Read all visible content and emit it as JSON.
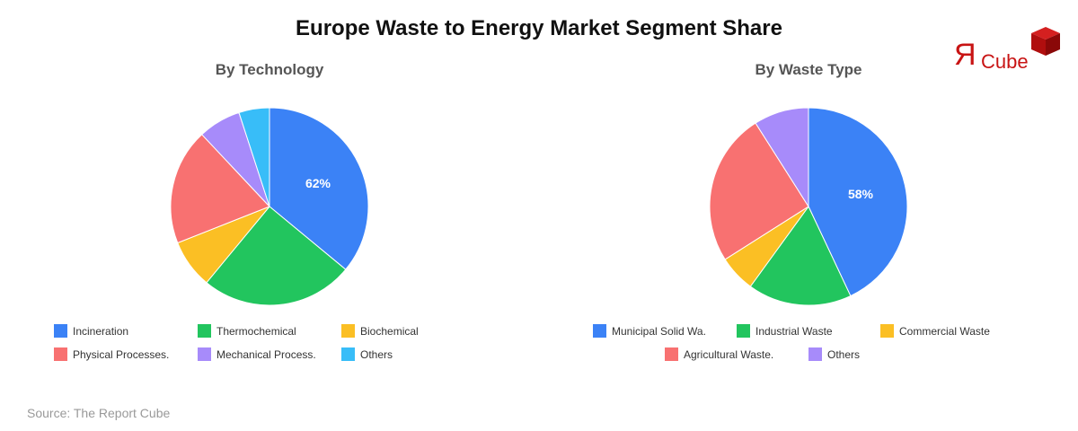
{
  "title": "Europe Waste to Energy Market Segment Share",
  "source": "Source: The Report Cube",
  "logo": {
    "r": "Я",
    "text": "Cube"
  },
  "chart_data": [
    {
      "type": "pie",
      "title": "By Technology",
      "label_shown": "62%",
      "categories": [
        "Incineration",
        "Thermochemical",
        "Biochemical",
        "Physical Processes.",
        "Mechanical Process.",
        "Others"
      ],
      "values": [
        36,
        25,
        8,
        19,
        7,
        5
      ],
      "colors": [
        "#3B82F6",
        "#22C55E",
        "#FBBF24",
        "#F87171",
        "#A78BFA",
        "#38BDF8"
      ]
    },
    {
      "type": "pie",
      "title": "By Waste Type",
      "label_shown": "58%",
      "categories": [
        "Municipal Solid Wa.",
        "Industrial Waste",
        "Commercial Waste",
        "Agricultural Waste.",
        "Others"
      ],
      "values": [
        43,
        17,
        6,
        25,
        9
      ],
      "colors": [
        "#3B82F6",
        "#22C55E",
        "#FBBF24",
        "#F87171",
        "#A78BFA"
      ]
    }
  ]
}
